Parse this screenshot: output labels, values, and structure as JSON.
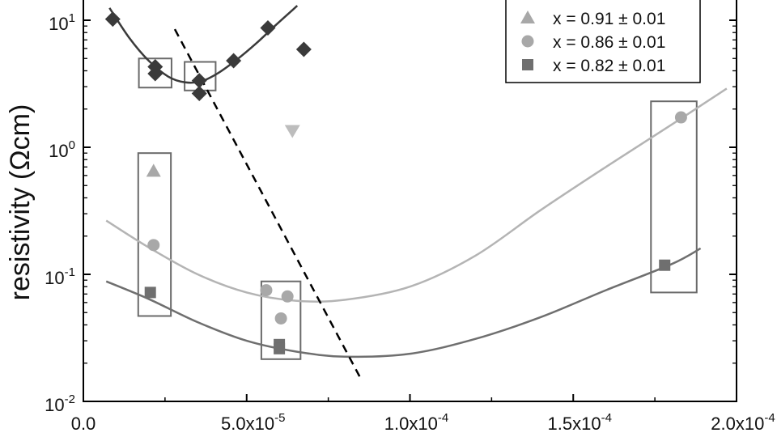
{
  "chart_data": {
    "type": "scatter",
    "title": "",
    "xlabel": "",
    "ylabel": "resistivity (Ωcm)",
    "x_scale": "linear",
    "y_scale": "log",
    "xlim": [
      0,
      0.0002
    ],
    "ylim": [
      0.01,
      18
    ],
    "grid": false,
    "legend_position": "top-right",
    "x_ticks": [
      {
        "value": 0,
        "label": "0.0",
        "exp": ""
      },
      {
        "value": 5e-05,
        "label": "5.0x10",
        "exp": "-5"
      },
      {
        "value": 0.0001,
        "label": "1.0x10",
        "exp": "-4"
      },
      {
        "value": 0.00015,
        "label": "1.5x10",
        "exp": "-4"
      },
      {
        "value": 0.0002,
        "label": "2.0x10",
        "exp": "-4"
      }
    ],
    "y_ticks": [
      {
        "value": 0.01,
        "label": "10",
        "exp": "-2"
      },
      {
        "value": 0.1,
        "label": "10",
        "exp": "-1"
      },
      {
        "value": 1,
        "label": "10",
        "exp": "0"
      },
      {
        "value": 10,
        "label": "10",
        "exp": "1"
      }
    ],
    "series": [
      {
        "name": "x = 0.91 ± 0.01",
        "marker": "triangle-up",
        "color": "#a8a8a8",
        "points": [
          [
            2.15e-05,
            0.65
          ]
        ]
      },
      {
        "name": "x = 0.86 ± 0.01",
        "marker": "circle",
        "color": "#a8a8a8",
        "points": [
          [
            2.15e-05,
            0.17
          ],
          [
            5.6e-05,
            0.075
          ],
          [
            6.05e-05,
            0.045
          ],
          [
            6.25e-05,
            0.067
          ],
          [
            0.000183,
            1.72
          ]
        ]
      },
      {
        "name": "x = 0.82 ± 0.01",
        "marker": "square",
        "color": "#6f6f6f",
        "points": [
          [
            2.05e-05,
            0.072
          ],
          [
            6e-05,
            0.028
          ],
          [
            6e-05,
            0.026
          ],
          [
            0.000178,
            0.118
          ]
        ]
      },
      {
        "name": "",
        "marker": "diamond",
        "color": "#3a3a3a",
        "points": [
          [
            9e-06,
            10.2
          ],
          [
            2.2e-05,
            4.3
          ],
          [
            2.2e-05,
            3.8
          ],
          [
            3.55e-05,
            3.35
          ],
          [
            3.55e-05,
            2.65
          ],
          [
            4.6e-05,
            4.8
          ],
          [
            5.65e-05,
            8.7
          ],
          [
            6.75e-05,
            5.9
          ]
        ]
      },
      {
        "name": "",
        "marker": "triangle-down",
        "color": "#bdbdbd",
        "points": [
          [
            6.4e-05,
            1.35
          ]
        ]
      }
    ],
    "fit_curves": [
      {
        "color": "#3a3a3a",
        "points": [
          [
            8e-06,
            12.5
          ],
          [
            1.4e-05,
            7.3
          ],
          [
            2e-05,
            4.8
          ],
          [
            2.6e-05,
            3.6
          ],
          [
            3.1e-05,
            3.25
          ],
          [
            3.6e-05,
            3.3
          ],
          [
            4.1e-05,
            3.8
          ],
          [
            4.7e-05,
            4.9
          ],
          [
            5.3e-05,
            6.6
          ],
          [
            5.9e-05,
            9.2
          ],
          [
            6.55e-05,
            13.0
          ]
        ]
      },
      {
        "color": "#b4b4b4",
        "points": [
          [
            7e-06,
            0.265
          ],
          [
            2e-05,
            0.163
          ],
          [
            3.5e-05,
            0.1
          ],
          [
            5e-05,
            0.072
          ],
          [
            6.5e-05,
            0.062
          ],
          [
            8e-05,
            0.063
          ],
          [
            0.0001,
            0.08
          ],
          [
            0.00012,
            0.14
          ],
          [
            0.00014,
            0.32
          ],
          [
            0.00016,
            0.7
          ],
          [
            0.00018,
            1.5
          ],
          [
            0.000197,
            2.9
          ]
        ]
      },
      {
        "color": "#6f6f6f",
        "points": [
          [
            7e-06,
            0.088
          ],
          [
            2e-05,
            0.064
          ],
          [
            3.5e-05,
            0.042
          ],
          [
            5e-05,
            0.03
          ],
          [
            6.5e-05,
            0.0247
          ],
          [
            8e-05,
            0.0225
          ],
          [
            0.0001,
            0.0237
          ],
          [
            0.00012,
            0.031
          ],
          [
            0.00014,
            0.046
          ],
          [
            0.00016,
            0.075
          ],
          [
            0.00018,
            0.12
          ],
          [
            0.000189,
            0.16
          ]
        ]
      },
      {
        "color": "#000000",
        "dashed": true,
        "points": [
          [
            2.8e-05,
            8.5
          ],
          [
            8.5e-05,
            0.015
          ]
        ]
      }
    ],
    "boxes": [
      {
        "x0": 1.7e-05,
        "x1": 2.7e-05,
        "y0": 2.95,
        "y1": 5.0
      },
      {
        "x0": 3.1e-05,
        "x1": 4.05e-05,
        "y0": 2.8,
        "y1": 4.7
      },
      {
        "x0": 1.68e-05,
        "x1": 2.68e-05,
        "y0": 0.047,
        "y1": 0.9
      },
      {
        "x0": 5.45e-05,
        "x1": 6.65e-05,
        "y0": 0.0215,
        "y1": 0.088
      },
      {
        "x0": 0.0001738,
        "x1": 0.0001878,
        "y0": 0.072,
        "y1": 2.3
      }
    ]
  }
}
